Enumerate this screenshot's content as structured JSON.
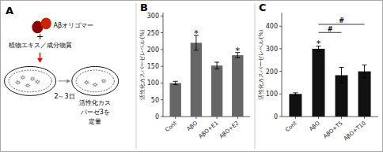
{
  "chart_data": [
    {
      "type": "diagram",
      "title": "A",
      "annotations": [
        {
          "text": "Aβオリゴマー"
        },
        {
          "text": "+"
        },
        {
          "text": "植物エキス／成分物質"
        },
        {
          "text": "2～3日"
        },
        {
          "text": "活性化カス"
        },
        {
          "text": "パーゼ3を"
        },
        {
          "text": "定量"
        }
      ]
    },
    {
      "type": "bar",
      "title": "B",
      "categories": [
        "Cont",
        "AβO",
        "AβO+E1",
        "AβO+E2"
      ],
      "values": [
        100,
        220,
        152,
        183
      ],
      "errors": [
        5,
        22,
        10,
        8
      ],
      "color": "#666666",
      "ylim": [
        0,
        310
      ],
      "yticks": [
        0,
        50,
        100,
        150,
        200,
        250,
        300
      ],
      "y_label": "活性化カスパーゼレベル(%)",
      "grid": false,
      "annotations": [
        {
          "text": "*",
          "category": "AβO"
        },
        {
          "text": "*",
          "category": "AβO+E2"
        }
      ]
    },
    {
      "type": "bar",
      "title": "C",
      "categories": [
        "Cont",
        "AβO",
        "AβO+T5",
        "AβO+T10"
      ],
      "values": [
        100,
        300,
        183,
        200
      ],
      "errors": [
        5,
        12,
        35,
        28
      ],
      "color": "#111111",
      "ylim": [
        0,
        460
      ],
      "yticks": [
        0,
        100,
        200,
        300,
        400
      ],
      "y_label": "活性化カスパーゼレベル(%)",
      "grid": false,
      "annotations": [
        {
          "text": "*",
          "category": "AβO"
        },
        {
          "text": "#",
          "from": "AβO",
          "to": "AβO+T5",
          "y": 372
        },
        {
          "text": "#",
          "from": "AβO",
          "to": "AβO+T10",
          "y": 408
        }
      ]
    }
  ]
}
